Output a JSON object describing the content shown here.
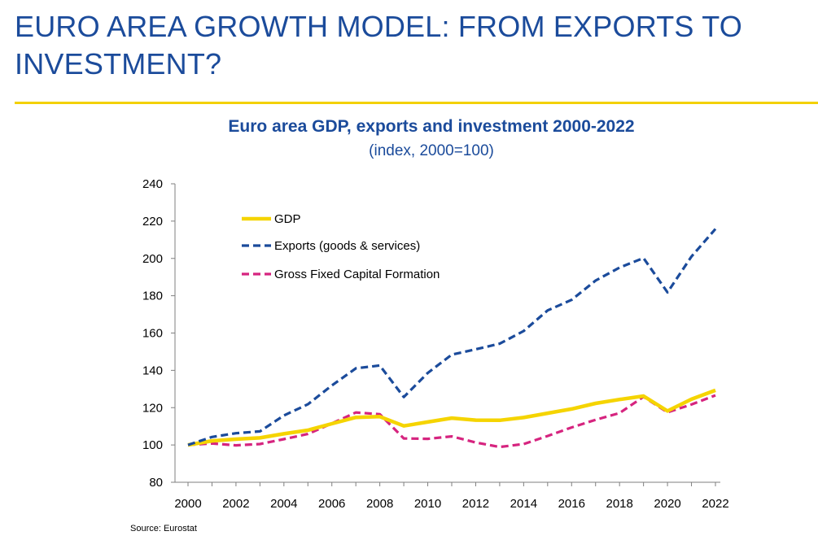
{
  "slide": {
    "title": "EURO AREA GROWTH MODEL: FROM EXPORTS TO INVESTMENT?",
    "source": "Source: Eurostat"
  },
  "chart_data": {
    "type": "line",
    "title": "Euro area GDP, exports and investment 2000-2022",
    "subtitle": "(index, 2000=100)",
    "xlabel": "",
    "ylabel": "",
    "ylim": [
      80,
      240
    ],
    "yticks": [
      80,
      100,
      120,
      140,
      160,
      180,
      200,
      220,
      240
    ],
    "xticks": [
      2000,
      2002,
      2004,
      2006,
      2008,
      2010,
      2012,
      2014,
      2016,
      2018,
      2020,
      2022
    ],
    "x": [
      2000,
      2001,
      2002,
      2003,
      2004,
      2005,
      2006,
      2007,
      2008,
      2009,
      2010,
      2011,
      2012,
      2013,
      2014,
      2015,
      2016,
      2017,
      2018,
      2019,
      2020,
      2021,
      2022
    ],
    "grid": false,
    "legend_position": "top-left",
    "series": [
      {
        "name": "GDP",
        "style": "solid",
        "color": "#f5d400",
        "values": [
          100,
          102.2,
          103.1,
          103.8,
          106.0,
          107.9,
          111.4,
          114.8,
          115.2,
          110.2,
          112.3,
          114.4,
          113.3,
          113.2,
          114.7,
          117.0,
          119.3,
          122.3,
          124.4,
          126.2,
          118.2,
          124.5,
          129.3
        ]
      },
      {
        "name": "Exports (goods & services)",
        "style": "dashed",
        "color": "#1b4b9b",
        "values": [
          100,
          104.3,
          106.3,
          107.3,
          115.8,
          121.8,
          131.9,
          141.1,
          142.6,
          125.7,
          138.6,
          148.4,
          151.3,
          154.3,
          161.1,
          172.1,
          177.8,
          188.1,
          195.1,
          200.2,
          181.8,
          201.0,
          215.8
        ]
      },
      {
        "name": "Gross Fixed Capital Formation",
        "style": "dashed",
        "color": "#d6247f",
        "values": [
          100,
          100.8,
          99.8,
          100.5,
          103.1,
          105.9,
          111.5,
          117.4,
          116.5,
          103.5,
          103.3,
          104.6,
          101.3,
          98.9,
          100.5,
          104.8,
          109.4,
          113.5,
          117.1,
          125.8,
          117.5,
          121.7,
          126.6
        ]
      }
    ]
  }
}
